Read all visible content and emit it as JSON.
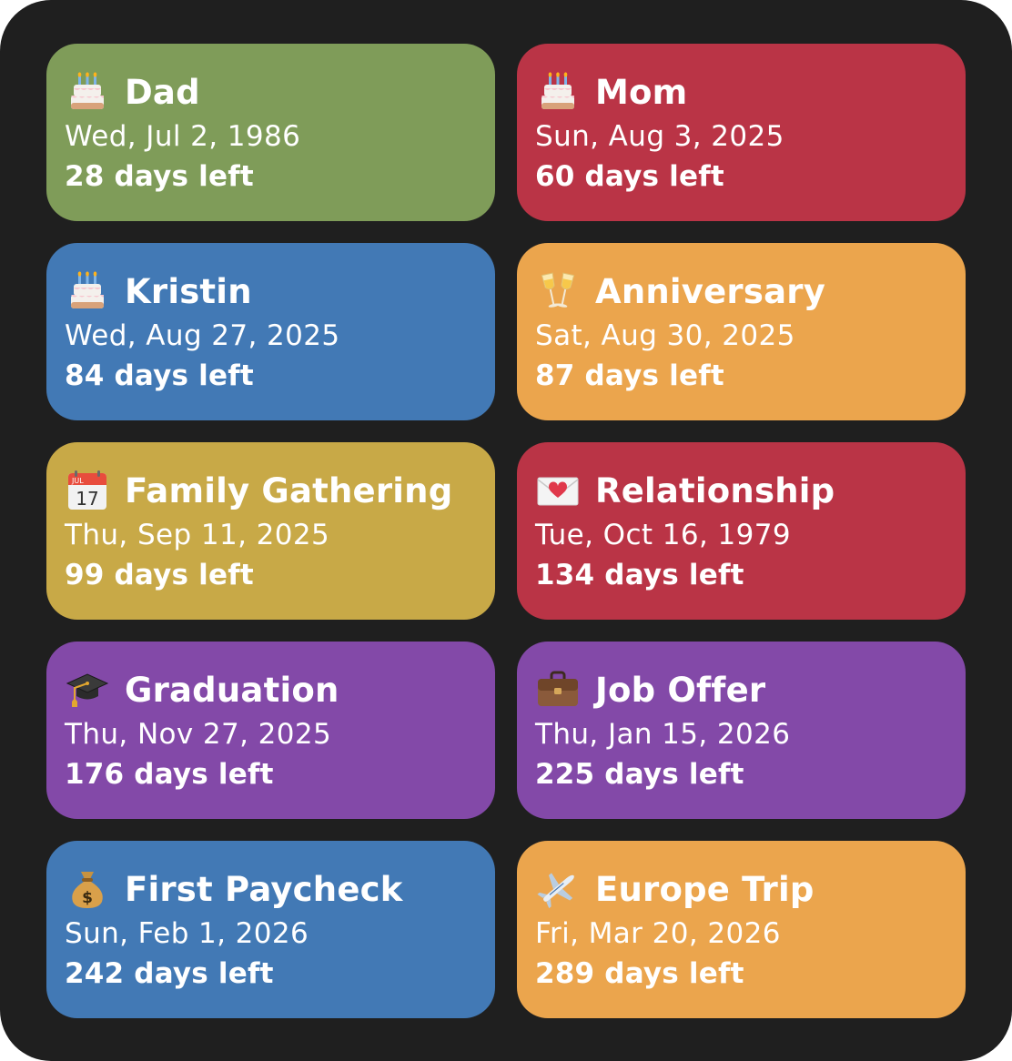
{
  "widget": {
    "cards": [
      {
        "id": "dad",
        "icon": "birthday-cake-icon",
        "title": "Dad",
        "date": "Wed, Jul 2, 1986",
        "days_left": "28 days left",
        "color": "#7f9c59"
      },
      {
        "id": "mom",
        "icon": "birthday-cake-icon",
        "title": "Mom",
        "date": "Sun, Aug 3, 2025",
        "days_left": "60 days left",
        "color": "#ba3446"
      },
      {
        "id": "kristin",
        "icon": "birthday-cake-icon",
        "title": "Kristin",
        "date": "Wed, Aug 27, 2025",
        "days_left": "84 days left",
        "color": "#4279b5"
      },
      {
        "id": "anniversary",
        "icon": "champagne-glasses-icon",
        "title": "Anniversary",
        "date": "Sat, Aug 30, 2025",
        "days_left": "87 days left",
        "color": "#eba54d"
      },
      {
        "id": "family-gathering",
        "icon": "calendar-icon",
        "title": "Family Gathering",
        "date": "Thu, Sep 11, 2025",
        "days_left": "99 days left",
        "color": "#c8a947"
      },
      {
        "id": "relationship",
        "icon": "love-letter-icon",
        "title": "Relationship",
        "date": "Tue, Oct 16, 1979",
        "days_left": "134 days left",
        "color": "#ba3446"
      },
      {
        "id": "graduation",
        "icon": "graduation-cap-icon",
        "title": "Graduation",
        "date": "Thu, Nov 27, 2025",
        "days_left": "176 days left",
        "color": "#8349a8"
      },
      {
        "id": "job-offer",
        "icon": "briefcase-icon",
        "title": "Job Offer",
        "date": "Thu, Jan 15, 2026",
        "days_left": "225 days left",
        "color": "#8349a8"
      },
      {
        "id": "first-paycheck",
        "icon": "money-bag-icon",
        "title": "First Paycheck",
        "date": "Sun, Feb 1, 2026",
        "days_left": "242 days left",
        "color": "#4279b5"
      },
      {
        "id": "europe-trip",
        "icon": "airplane-icon",
        "title": "Europe Trip",
        "date": "Fri, Mar 20, 2026",
        "days_left": "289 days left",
        "color": "#eba54d"
      }
    ],
    "calendar_icon_month": "JUL",
    "calendar_icon_day": "17",
    "money_bag_symbol": "$",
    "background_color": "#1f1f1f"
  }
}
